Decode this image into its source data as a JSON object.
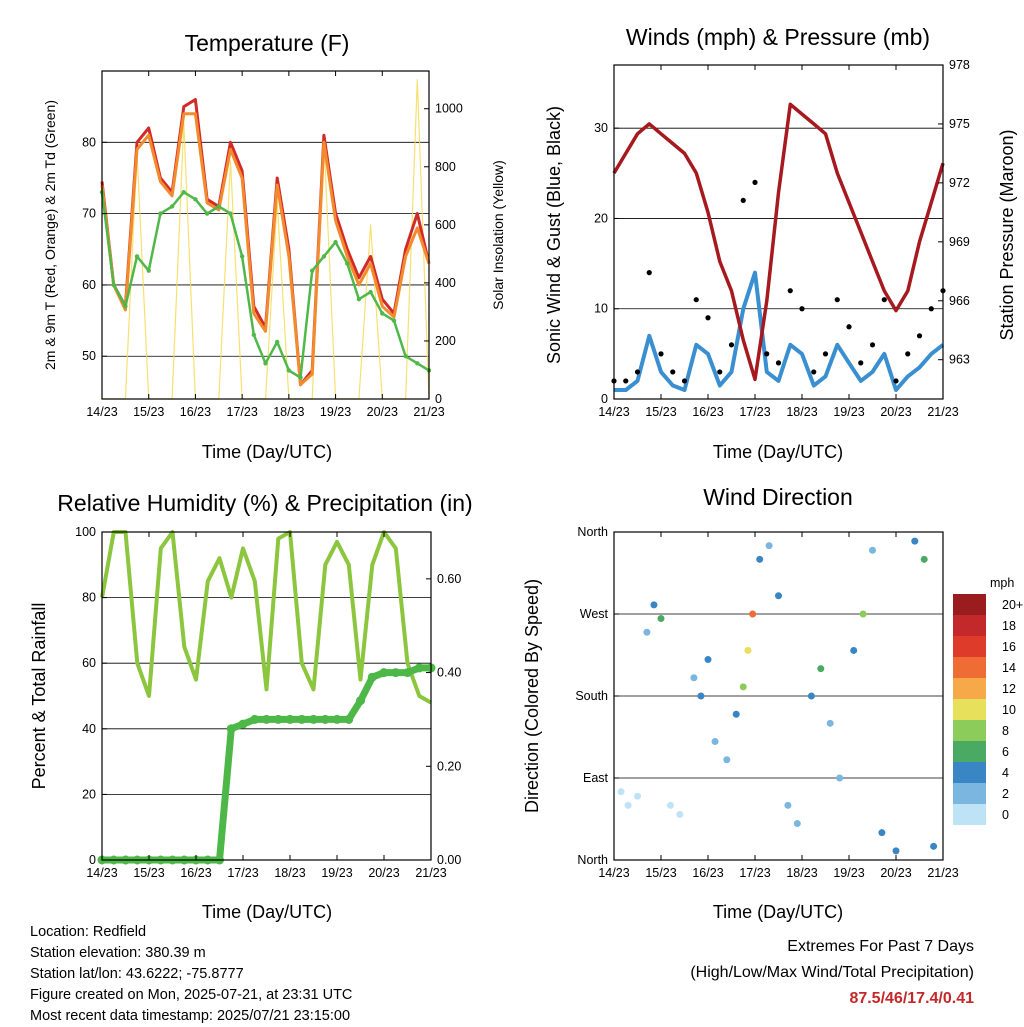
{
  "panels": {
    "temperature": {
      "title": "Temperature (F)",
      "ylabel_left": "2m & 9m T (Red, Orange) & 2m Td (Green)",
      "ylabel_right": "Solar Insolation (Yellow)",
      "xlabel": "Time (Day/UTC)"
    },
    "winds": {
      "title": "Winds (mph) & Pressure (mb)",
      "ylabel_left": "Sonic Wind & Gust (Blue, Black)",
      "ylabel_right": "Station Pressure (Maroon)",
      "xlabel": "Time (Day/UTC)"
    },
    "humidity": {
      "title": "Relative Humidity (%) & Precipitation (in)",
      "ylabel_left": "Percent & Total Rainfall",
      "xlabel": "Time (Day/UTC)"
    },
    "direction": {
      "title": "Wind Direction",
      "ylabel_left": "Direction (Colored By Speed)",
      "xlabel": "Time (Day/UTC)",
      "legend_title": "mph",
      "legend_labels": [
        "20+",
        "18",
        "16",
        "14",
        "12",
        "10",
        "8",
        "6",
        "4",
        "2",
        "0"
      ],
      "legend_colors": [
        "#9b1c1f",
        "#c3282a",
        "#de3b2b",
        "#ef6d34",
        "#f7a94a",
        "#e6e05a",
        "#8ccc5a",
        "#4aaa64",
        "#3a86c4",
        "#7ab6e0",
        "#bfe3f6"
      ]
    }
  },
  "footer": {
    "location": "Location: Redfield",
    "elevation": "Station elevation: 380.39 m",
    "latlon": "Station lat/lon: 43.6222; -75.8777",
    "created": "Figure created on Mon, 2025-07-21, at 23:31 UTC",
    "recent": "Most recent data timestamp: 2025/07/21 23:15:00",
    "extremes_title": "Extremes For Past 7 Days",
    "extremes_sub": "(High/Low/Max Wind/Total Precipitation)",
    "extremes_values": "87.5/46/17.4/0.41"
  },
  "chart_data": [
    {
      "type": "line",
      "title": "Temperature (F)",
      "xlabel": "Time (Day/UTC)",
      "ylabel": "2m & 9m T (Red, Orange) & 2m Td (Green)",
      "ylabel_right": "Solar Insolation (Yellow)",
      "x_ticks": [
        "14/23",
        "15/23",
        "16/23",
        "17/23",
        "18/23",
        "19/23",
        "20/23",
        "21/23"
      ],
      "ylim": [
        44,
        90
      ],
      "y_ticks": [
        50,
        60,
        70,
        80
      ],
      "ylim_right": [
        0,
        1130
      ],
      "y_ticks_right": [
        0,
        200,
        400,
        600,
        800,
        1000
      ],
      "grid": "horizontal",
      "x_days": [
        0,
        0.25,
        0.5,
        0.75,
        1,
        1.25,
        1.5,
        1.75,
        2,
        2.25,
        2.5,
        2.75,
        3,
        3.25,
        3.5,
        3.75,
        4,
        4.25,
        4.5,
        4.75,
        5,
        5.25,
        5.5,
        5.75,
        6,
        6.25,
        6.5,
        6.75,
        7
      ],
      "series": [
        {
          "color": "#d22b27",
          "values": [
            74.5,
            60,
            57,
            80,
            82,
            75,
            73,
            85,
            86,
            72,
            71,
            80,
            76,
            57,
            54,
            75,
            65,
            46,
            48,
            81,
            70,
            65,
            61,
            64,
            58,
            56,
            65,
            70,
            63
          ]
        },
        {
          "color": "#f28b2e",
          "values": [
            74,
            60,
            56.5,
            79,
            81,
            74.5,
            72.5,
            84,
            84,
            71.5,
            70.5,
            79,
            75,
            56,
            53.5,
            74,
            64,
            46,
            47.5,
            80,
            69,
            64,
            60,
            63,
            57,
            55.5,
            64,
            68,
            63
          ]
        },
        {
          "color": "#4fb848",
          "values": [
            73,
            60,
            57,
            64,
            62,
            70,
            71,
            73,
            72,
            70,
            71,
            70,
            64,
            53,
            49,
            52,
            48,
            47,
            62,
            64,
            66,
            63,
            58,
            59,
            56,
            55,
            50,
            49,
            48
          ]
        },
        {
          "color": "#f4dc56",
          "values": [
            0,
            0,
            0,
            850,
            0,
            0,
            0,
            950,
            0,
            0,
            0,
            820,
            0,
            0,
            0,
            680,
            0,
            0,
            0,
            900,
            0,
            0,
            0,
            600,
            0,
            0,
            0,
            1100,
            0
          ]
        }
      ]
    },
    {
      "type": "scatter",
      "title": "Winds (mph) & Pressure (mb)",
      "xlabel": "Time (Day/UTC)",
      "ylabel": "Sonic Wind & Gust (Blue, Black)",
      "ylabel_right": "Station Pressure (Maroon)",
      "x_ticks": [
        "14/23",
        "15/23",
        "16/23",
        "17/23",
        "18/23",
        "19/23",
        "20/23",
        "21/23"
      ],
      "ylim": [
        0,
        37
      ],
      "y_ticks": [
        0,
        10,
        20,
        30
      ],
      "ylim_right": [
        961,
        978
      ],
      "y_ticks_right": [
        963,
        966,
        969,
        972,
        975,
        978
      ],
      "grid": "horizontal",
      "x_days": [
        0,
        0.25,
        0.5,
        0.75,
        1,
        1.25,
        1.5,
        1.75,
        2,
        2.25,
        2.5,
        2.75,
        3,
        3.25,
        3.5,
        3.75,
        4,
        4.25,
        4.5,
        4.75,
        5,
        5.25,
        5.5,
        5.75,
        6,
        6.25,
        6.5,
        6.75,
        7
      ],
      "series": [
        {
          "color": "#000000",
          "values": [
            2,
            2,
            3,
            14,
            5,
            3,
            2,
            11,
            9,
            3,
            6,
            22,
            24,
            5,
            4,
            12,
            10,
            3,
            5,
            11,
            8,
            4,
            6,
            11,
            2,
            5,
            7,
            10,
            12
          ]
        },
        {
          "color": "#3a8fd0",
          "values": [
            1,
            1,
            2,
            7,
            3,
            1.5,
            1,
            6,
            5,
            1.5,
            3,
            10,
            14,
            3,
            2,
            6,
            5,
            1.5,
            2.5,
            6,
            4,
            2,
            3,
            5,
            1,
            2.5,
            3.5,
            5,
            6
          ]
        },
        {
          "color": "#a6191e",
          "values": [
            972.5,
            973.5,
            974.5,
            975,
            974.5,
            974,
            973.5,
            972.5,
            970.5,
            968,
            966.5,
            964,
            962,
            966,
            971.5,
            976,
            975.5,
            975,
            974.5,
            972.5,
            971,
            969.5,
            968,
            966.5,
            965.5,
            966.5,
            969,
            971,
            973
          ]
        }
      ]
    },
    {
      "type": "line",
      "title": "Relative Humidity (%) & Precipitation (in)",
      "xlabel": "Time (Day/UTC)",
      "ylabel": "Percent & Total Rainfall",
      "x_ticks": [
        "14/23",
        "15/23",
        "16/23",
        "17/23",
        "18/23",
        "19/23",
        "20/23",
        "21/23"
      ],
      "ylim": [
        0,
        100
      ],
      "y_ticks": [
        0,
        20,
        40,
        60,
        80,
        100
      ],
      "ylim_right": [
        0,
        0.7
      ],
      "y_ticks_right": [
        "0.00",
        "0.20",
        "0.40",
        "0.60"
      ],
      "grid": "horizontal",
      "x_days": [
        0,
        0.25,
        0.5,
        0.75,
        1,
        1.25,
        1.5,
        1.75,
        2,
        2.25,
        2.5,
        2.75,
        3,
        3.25,
        3.5,
        3.75,
        4,
        4.25,
        4.5,
        4.75,
        5,
        5.25,
        5.5,
        5.75,
        6,
        6.25,
        6.5,
        6.75,
        7
      ],
      "series": [
        {
          "color": "#8cc63f",
          "values": [
            80,
            100,
            100,
            60,
            50,
            95,
            100,
            65,
            55,
            85,
            92,
            80,
            95,
            85,
            52,
            98,
            100,
            60,
            52,
            90,
            97,
            90,
            55,
            90,
            100,
            95,
            60,
            50,
            48
          ]
        },
        {
          "color": "#4db848",
          "values": [
            0,
            0,
            0,
            0,
            0,
            0,
            0,
            0,
            0,
            0,
            0,
            0.28,
            0.29,
            0.3,
            0.3,
            0.3,
            0.3,
            0.3,
            0.3,
            0.3,
            0.3,
            0.3,
            0.34,
            0.39,
            0.4,
            0.4,
            0.4,
            0.41,
            0.41
          ]
        }
      ]
    },
    {
      "type": "scatter",
      "title": "Wind Direction",
      "xlabel": "Time (Day/UTC)",
      "ylabel": "Direction (Colored By Speed)",
      "x_ticks": [
        "14/23",
        "15/23",
        "16/23",
        "17/23",
        "18/23",
        "19/23",
        "20/23",
        "21/23"
      ],
      "y_ticks": [
        "North",
        "East",
        "South",
        "West",
        "North"
      ],
      "ylim": [
        0,
        360
      ],
      "grid": "horizontal",
      "legend": "right",
      "points": [
        {
          "x": 0.15,
          "y": 75,
          "s": 1
        },
        {
          "x": 0.3,
          "y": 60,
          "s": 1
        },
        {
          "x": 0.5,
          "y": 70,
          "s": 0
        },
        {
          "x": 0.7,
          "y": 250,
          "s": 3
        },
        {
          "x": 0.85,
          "y": 280,
          "s": 5
        },
        {
          "x": 1.0,
          "y": 265,
          "s": 6
        },
        {
          "x": 1.2,
          "y": 60,
          "s": 1
        },
        {
          "x": 1.4,
          "y": 50,
          "s": 0
        },
        {
          "x": 1.7,
          "y": 200,
          "s": 3
        },
        {
          "x": 1.85,
          "y": 180,
          "s": 4
        },
        {
          "x": 2.0,
          "y": 220,
          "s": 5
        },
        {
          "x": 2.15,
          "y": 130,
          "s": 2
        },
        {
          "x": 2.4,
          "y": 110,
          "s": 2
        },
        {
          "x": 2.6,
          "y": 160,
          "s": 4
        },
        {
          "x": 2.75,
          "y": 190,
          "s": 8
        },
        {
          "x": 2.85,
          "y": 230,
          "s": 11
        },
        {
          "x": 2.95,
          "y": 270,
          "s": 14
        },
        {
          "x": 3.1,
          "y": 330,
          "s": 4
        },
        {
          "x": 3.3,
          "y": 345,
          "s": 3
        },
        {
          "x": 3.5,
          "y": 290,
          "s": 5
        },
        {
          "x": 3.7,
          "y": 60,
          "s": 3
        },
        {
          "x": 3.9,
          "y": 40,
          "s": 2
        },
        {
          "x": 4.2,
          "y": 180,
          "s": 4
        },
        {
          "x": 4.4,
          "y": 210,
          "s": 6
        },
        {
          "x": 4.6,
          "y": 150,
          "s": 3
        },
        {
          "x": 4.8,
          "y": 90,
          "s": 2
        },
        {
          "x": 5.1,
          "y": 230,
          "s": 5
        },
        {
          "x": 5.3,
          "y": 270,
          "s": 9
        },
        {
          "x": 5.5,
          "y": 340,
          "s": 2
        },
        {
          "x": 5.7,
          "y": 30,
          "s": 5
        },
        {
          "x": 6.0,
          "y": 10,
          "s": 4
        },
        {
          "x": 6.4,
          "y": 350,
          "s": 4
        },
        {
          "x": 6.6,
          "y": 330,
          "s": 6
        },
        {
          "x": 6.8,
          "y": 15,
          "s": 5
        }
      ]
    }
  ]
}
